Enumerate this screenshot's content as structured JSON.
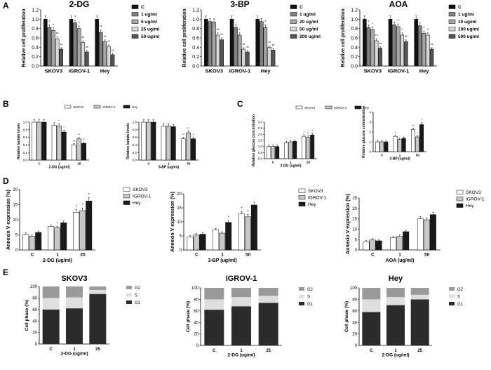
{
  "figure": {
    "panel_letters": [
      "A",
      "B",
      "C",
      "D",
      "E"
    ]
  },
  "colors": {
    "c0": "#111111",
    "c1": "#808080",
    "c2": "#a6a6a6",
    "c3": "#d9d9d9",
    "c4": "#555555",
    "white": "#ffffff",
    "light": "#c8c8c8",
    "dark": "#1a1a1a",
    "g1": "#2b2b2b",
    "s": "#dedede",
    "g2": "#9a9a9a"
  },
  "chart_data": [
    {
      "panel": "A",
      "type": "bar",
      "title": "2-DG",
      "ylabel": "Relative cell proliferation",
      "ylim": [
        0,
        1.2
      ],
      "yticks": [
        "0.0",
        "0.2",
        "0.4",
        "0.6",
        "0.8",
        "1.0",
        "1.2"
      ],
      "categories": [
        "SKOV3",
        "IGROV-1",
        "Hey"
      ],
      "series": [
        {
          "name": "C",
          "values": [
            1.0,
            1.0,
            1.0
          ]
        },
        {
          "name": "1 ug/ml",
          "values": [
            0.82,
            0.92,
            0.72
          ]
        },
        {
          "name": "5 ug/ml",
          "values": [
            0.76,
            0.8,
            0.52
          ]
        },
        {
          "name": "25 ug/ml",
          "values": [
            0.58,
            0.5,
            0.42
          ]
        },
        {
          "name": "50 ug/ml",
          "values": [
            0.36,
            0.3,
            0.24
          ]
        }
      ],
      "significance": [
        [
          "*",
          "*",
          "**",
          "**"
        ],
        [
          "*",
          "*",
          "**",
          "**"
        ],
        [
          "**",
          "**",
          "**",
          "**"
        ]
      ]
    },
    {
      "panel": "A",
      "type": "bar",
      "title": "3-BP",
      "ylabel": "Relative cell proliferation",
      "ylim": [
        0,
        1.2
      ],
      "yticks": [
        "0.0",
        "0.2",
        "0.4",
        "0.6",
        "0.8",
        "1.0",
        "1.2"
      ],
      "categories": [
        "SKOV3",
        "IGROV-1",
        "Hey"
      ],
      "series": [
        {
          "name": "C",
          "values": [
            1.0,
            1.0,
            1.0
          ]
        },
        {
          "name": "1 ug/ml",
          "values": [
            0.95,
            0.82,
            0.95
          ]
        },
        {
          "name": "20 ug/ml",
          "values": [
            0.94,
            0.66,
            0.82
          ]
        },
        {
          "name": "50 ug/ml",
          "values": [
            0.66,
            0.36,
            0.4
          ]
        },
        {
          "name": "200 ug/ml",
          "values": [
            0.56,
            0.3,
            0.34
          ]
        }
      ],
      "significance": [
        [
          "",
          "",
          "**",
          "**"
        ],
        [
          "",
          "*",
          "**",
          "**"
        ],
        [
          "",
          "*",
          "**",
          "**"
        ]
      ]
    },
    {
      "panel": "A",
      "type": "bar",
      "title": "AOA",
      "ylabel": "Relative cell proliferation",
      "ylim": [
        0,
        1.2
      ],
      "yticks": [
        "0.0",
        "0.2",
        "0.4",
        "0.6",
        "0.8",
        "1.0",
        "1.2"
      ],
      "categories": [
        "SKOV3",
        "IGROV-1",
        "Hey"
      ],
      "series": [
        {
          "name": "C",
          "values": [
            1.0,
            1.0,
            1.0
          ]
        },
        {
          "name": "1 ug/ml",
          "values": [
            0.82,
            0.88,
            0.86
          ]
        },
        {
          "name": "10 ug/ml",
          "values": [
            0.78,
            0.84,
            0.7
          ]
        },
        {
          "name": "100 ug/ml",
          "values": [
            0.54,
            0.66,
            0.66
          ]
        },
        {
          "name": "500 ug/ml",
          "values": [
            0.38,
            0.52,
            0.36
          ]
        }
      ],
      "significance": [
        [
          "*",
          "*",
          "**",
          "**"
        ],
        [
          "",
          "*",
          "*",
          "**"
        ],
        [
          "",
          "*",
          "*",
          "**"
        ]
      ]
    },
    {
      "panel": "B",
      "type": "bar",
      "xlabel": "2-DG (ug/ml)",
      "ylabel": "Relative lactate levels",
      "ylim": [
        0,
        1.0
      ],
      "yticks": [
        "0.0",
        "0.2",
        "0.4",
        "0.6",
        "0.8",
        "1.0"
      ],
      "categories": [
        "C",
        "1",
        "25"
      ],
      "series": [
        {
          "name": "SKOV3",
          "values": [
            1.0,
            0.92,
            0.4
          ]
        },
        {
          "name": "IGROV-1",
          "values": [
            1.0,
            0.9,
            0.56
          ]
        },
        {
          "name": "Hey",
          "values": [
            1.0,
            0.74,
            0.44
          ]
        }
      ],
      "significance": [
        [
          "",
          "",
          ""
        ],
        [
          "",
          "*",
          "*"
        ],
        [
          "**",
          "**",
          "**"
        ]
      ]
    },
    {
      "panel": "B",
      "type": "bar",
      "xlabel": "3-BP (ug/ml)",
      "ylabel": "Relative lactate levels",
      "ylim": [
        0,
        1.0
      ],
      "yticks": [
        "0.0",
        "0.2",
        "0.4",
        "0.6",
        "0.8",
        "1.0"
      ],
      "categories": [
        "C",
        "1",
        "50"
      ],
      "series": [
        {
          "name": "SKOV3",
          "values": [
            1.0,
            0.9,
            0.56
          ]
        },
        {
          "name": "IGROV-1",
          "values": [
            1.0,
            0.9,
            0.72
          ]
        },
        {
          "name": "Hey",
          "values": [
            1.0,
            0.88,
            0.56
          ]
        }
      ],
      "significance": [
        [
          "",
          "",
          ""
        ],
        [
          "",
          "",
          ""
        ],
        [
          "**",
          "**",
          "*"
        ]
      ]
    },
    {
      "panel": "C",
      "type": "bar",
      "xlabel": "2-DG (ug/ml)",
      "ylabel": "Relative glucose concentration",
      "ylim": [
        0,
        3.0
      ],
      "yticks": [
        "0.0",
        "0.5",
        "1.0",
        "1.5",
        "2.0",
        "2.5",
        "3.0"
      ],
      "categories": [
        "C",
        "1",
        "25"
      ],
      "series": [
        {
          "name": "SKOV3",
          "values": [
            1.0,
            1.3,
            1.84
          ]
        },
        {
          "name": "IGROV-1",
          "values": [
            1.0,
            1.38,
            1.76
          ]
        },
        {
          "name": "Hey",
          "values": [
            1.0,
            1.42,
            1.95
          ]
        }
      ],
      "significance": [
        [
          "",
          "",
          ""
        ],
        [
          "*",
          "*",
          ""
        ],
        [
          "*",
          "**",
          "*"
        ]
      ]
    },
    {
      "panel": "C",
      "type": "bar",
      "xlabel": "3-BP (ug/ml)",
      "ylabel": "Relative glucose concentration",
      "ylim": [
        0,
        4.0
      ],
      "yticks": [
        "0",
        "1",
        "2",
        "3",
        "4"
      ],
      "categories": [
        "C",
        "1",
        "50"
      ],
      "series": [
        {
          "name": "SKOV3",
          "values": [
            1.0,
            1.55,
            2.25
          ]
        },
        {
          "name": "IGROV-1",
          "values": [
            1.0,
            1.25,
            1.5
          ]
        },
        {
          "name": "Hey",
          "values": [
            1.0,
            1.35,
            2.75
          ]
        }
      ],
      "significance": [
        [
          "",
          "",
          ""
        ],
        [
          "*",
          "",
          ""
        ],
        [
          "**",
          "*",
          "*"
        ]
      ]
    },
    {
      "panel": "D",
      "type": "bar",
      "xlabel": "2-DG (ug/ml)",
      "ylabel": "Annexin V expression  (%)",
      "ylim": [
        0,
        20
      ],
      "yticks": [
        "0",
        "5",
        "10",
        "15",
        "20"
      ],
      "categories": [
        "C",
        "1",
        "25"
      ],
      "series": [
        {
          "name": "SKOV3",
          "values": [
            5.2,
            7.8,
            12.5
          ]
        },
        {
          "name": "IGROV-1",
          "values": [
            4.6,
            7.3,
            13.0
          ]
        },
        {
          "name": "Hey",
          "values": [
            5.8,
            9.0,
            16.2
          ]
        }
      ],
      "significance": [
        [
          "",
          "",
          ""
        ],
        [
          "",
          "*",
          ""
        ],
        [
          "*",
          "*",
          "*"
        ]
      ]
    },
    {
      "panel": "D",
      "type": "bar",
      "xlabel": "3-BP (ug/ml)",
      "ylabel": "Annexin V expression  (%)",
      "ylim": [
        0,
        20
      ],
      "yticks": [
        "0",
        "5",
        "10",
        "15",
        "20"
      ],
      "categories": [
        "C",
        "1",
        "50"
      ],
      "series": [
        {
          "name": "SKOV3",
          "values": [
            4.6,
            7.2,
            12.8
          ]
        },
        {
          "name": "IGROV-1",
          "values": [
            5.3,
            6.0,
            11.8
          ]
        },
        {
          "name": "Hey",
          "values": [
            5.6,
            9.8,
            16.0
          ]
        }
      ],
      "significance": [
        [
          "",
          "",
          ""
        ],
        [
          "",
          "",
          "*"
        ],
        [
          "*",
          "*",
          ""
        ]
      ]
    },
    {
      "panel": "D",
      "type": "bar",
      "xlabel": "AOA (ug/ml)",
      "ylabel": "Annexin V expression  (%)",
      "ylim": [
        0,
        25
      ],
      "yticks": [
        "0",
        "5",
        "10",
        "15",
        "20",
        "25"
      ],
      "categories": [
        "C",
        "1",
        "50"
      ],
      "series": [
        {
          "name": "SKOV3",
          "values": [
            4.0,
            6.0,
            15.0
          ]
        },
        {
          "name": "IGROV-1",
          "values": [
            4.8,
            6.5,
            14.5
          ]
        },
        {
          "name": "Hey",
          "values": [
            4.4,
            8.8,
            17.0
          ]
        }
      ],
      "significance": [
        [
          "",
          "",
          ""
        ],
        [
          "",
          "",
          ""
        ],
        [
          "",
          "",
          ""
        ]
      ]
    },
    {
      "panel": "E",
      "type": "stacked-bar",
      "title": "SKOV3",
      "xlabel": "2-DG (ug/ml)",
      "ylabel": "Cell phase (%)",
      "ylim": [
        0,
        100
      ],
      "yticks": [
        "0",
        "20",
        "40",
        "60",
        "80",
        "100"
      ],
      "categories": [
        "C",
        "1",
        "25"
      ],
      "series": [
        {
          "name": "G1",
          "values": [
            60,
            62,
            87
          ]
        },
        {
          "name": "S",
          "values": [
            20,
            19,
            7
          ]
        },
        {
          "name": "G2",
          "values": [
            20,
            19,
            6
          ]
        }
      ],
      "legend_order": [
        "G2",
        "S",
        "G1"
      ]
    },
    {
      "panel": "E",
      "type": "stacked-bar",
      "title": "IGROV-1",
      "xlabel": "2-DG (ug/ml)",
      "ylabel": "Cell phase (%)",
      "ylim": [
        0,
        100
      ],
      "yticks": [
        "0",
        "20",
        "40",
        "60",
        "80",
        "100"
      ],
      "categories": [
        "C",
        "1",
        "25"
      ],
      "series": [
        {
          "name": "G1",
          "values": [
            62,
            68,
            74
          ]
        },
        {
          "name": "S",
          "values": [
            18,
            16,
            12
          ]
        },
        {
          "name": "G2",
          "values": [
            20,
            16,
            14
          ]
        }
      ],
      "legend_order": [
        "G2",
        "S",
        "G1"
      ]
    },
    {
      "panel": "E",
      "type": "stacked-bar",
      "title": "Hey",
      "xlabel": "2-DG (ug/ml)",
      "ylabel": "Cell phase (%)",
      "ylim": [
        0,
        100
      ],
      "yticks": [
        "0",
        "20",
        "40",
        "60",
        "80",
        "100"
      ],
      "categories": [
        "C",
        "1",
        "25"
      ],
      "series": [
        {
          "name": "G1",
          "values": [
            58,
            70,
            80
          ]
        },
        {
          "name": "S",
          "values": [
            22,
            14,
            8
          ]
        },
        {
          "name": "G2",
          "values": [
            20,
            16,
            12
          ]
        }
      ],
      "legend_order": [
        "G2",
        "S",
        "G1"
      ]
    }
  ]
}
